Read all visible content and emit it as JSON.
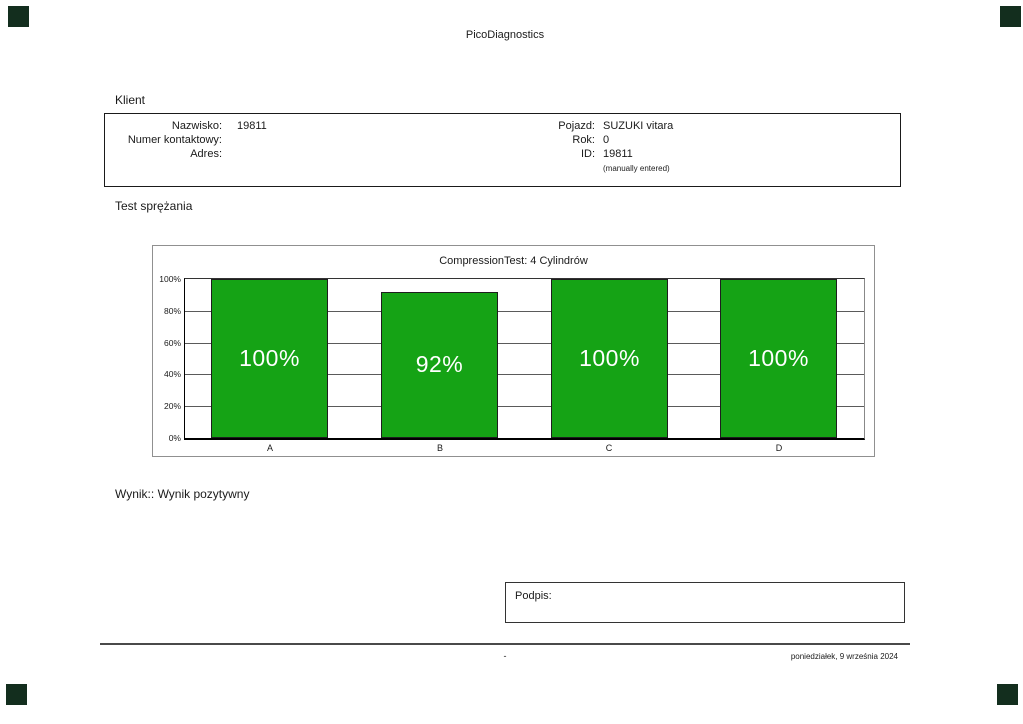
{
  "page": {
    "header_title": "PicoDiagnostics",
    "footer_center": "-",
    "footer_date": "poniedziałek, 9 września 2024"
  },
  "client": {
    "heading": "Klient",
    "fields_left": [
      {
        "label": "Nazwisko:",
        "value": "19811"
      },
      {
        "label": "Numer kontaktowy:",
        "value": ""
      },
      {
        "label": "Adres:",
        "value": ""
      }
    ],
    "fields_right": [
      {
        "label": "Pojazd:",
        "value": "SUZUKI vitara"
      },
      {
        "label": "Rok:",
        "value": "0"
      },
      {
        "label": "ID:",
        "value": "19811"
      }
    ],
    "id_note": "(manually entered)"
  },
  "test_section": {
    "heading": "Test sprężania",
    "result": "Wynik:: Wynik pozytywny"
  },
  "signature": {
    "label": "Podpis:"
  },
  "chart_data": {
    "type": "bar",
    "title": "CompressionTest: 4 Cylindrów",
    "categories": [
      "A",
      "B",
      "C",
      "D"
    ],
    "values": [
      100,
      92,
      100,
      100
    ],
    "bar_labels": [
      "100%",
      "92%",
      "100%",
      "100%"
    ],
    "ytick_labels": [
      "100%",
      "80%",
      "60%",
      "40%",
      "20%",
      "0%"
    ],
    "ylim": [
      0,
      100
    ],
    "grid": true,
    "legend_position": "none",
    "bar_color": "#15a315",
    "bar_label_color": "#ffffff"
  },
  "colors": {
    "bar_green": "#15a315",
    "corner_mark": "#132e1e",
    "text": "#1a1a1a"
  }
}
